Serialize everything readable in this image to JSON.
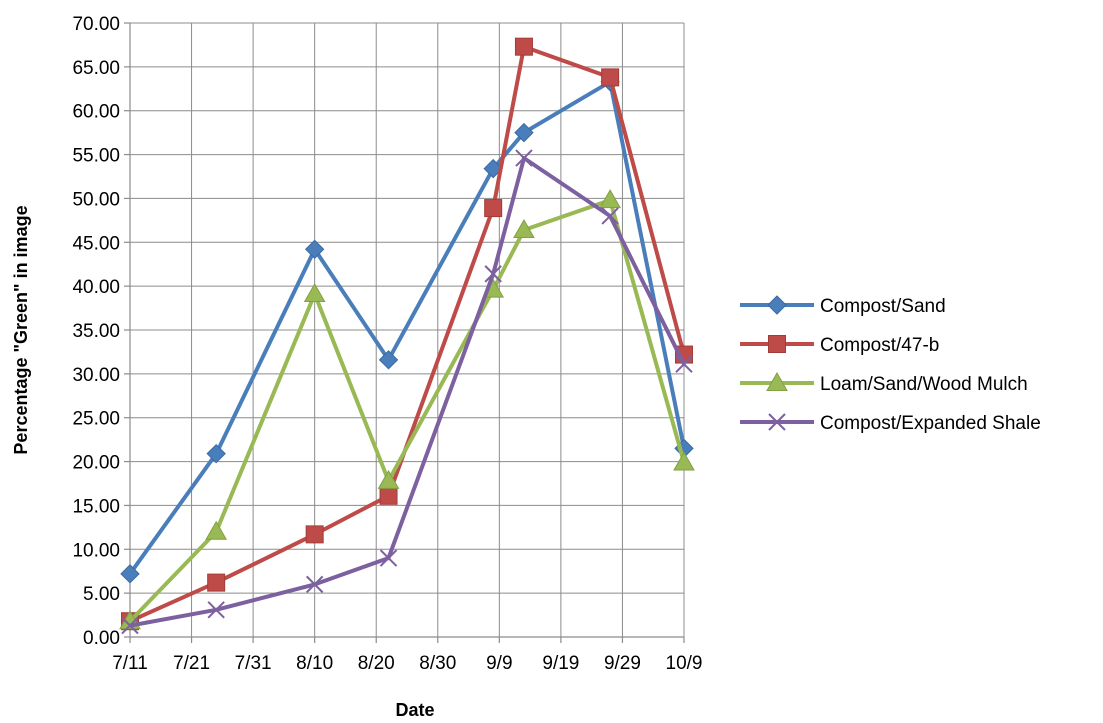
{
  "chart_data": {
    "type": "line",
    "title": "",
    "xlabel": "Date",
    "ylabel": "Percentage \"Green\" in image",
    "x_ticks": [
      "7/11",
      "7/21",
      "7/31",
      "8/10",
      "8/20",
      "8/30",
      "9/9",
      "9/19",
      "9/29",
      "10/9"
    ],
    "x_range": [
      "7/11",
      "10/9"
    ],
    "ylim": [
      0,
      70
    ],
    "y_ticks": [
      "0.00",
      "5.00",
      "10.00",
      "15.00",
      "20.00",
      "25.00",
      "30.00",
      "35.00",
      "40.00",
      "45.00",
      "50.00",
      "55.00",
      "60.00",
      "65.00",
      "70.00"
    ],
    "grid": "both",
    "legend_position": "right",
    "series": [
      {
        "name": "Compost/Sand",
        "color": "#4a7ebb",
        "marker": "diamond",
        "x": [
          "7/11",
          "7/25",
          "8/10",
          "8/22",
          "9/8",
          "9/13",
          "9/27",
          "10/9"
        ],
        "y": [
          7.2,
          20.9,
          44.2,
          31.6,
          53.4,
          57.5,
          63.3,
          21.5
        ]
      },
      {
        "name": "Compost/47-b",
        "color": "#be4b48",
        "marker": "square",
        "x": [
          "7/11",
          "7/25",
          "8/10",
          "8/22",
          "9/8",
          "9/13",
          "9/27",
          "10/9"
        ],
        "y": [
          1.8,
          6.2,
          11.7,
          16.1,
          48.9,
          67.3,
          63.8,
          32.2
        ]
      },
      {
        "name": "Loam/Sand/Wood Mulch",
        "color": "#98b954",
        "marker": "triangle",
        "x": [
          "7/11",
          "7/25",
          "8/10",
          "8/22",
          "9/8",
          "9/13",
          "9/27",
          "10/9"
        ],
        "y": [
          1.8,
          12.0,
          39.1,
          17.8,
          39.6,
          46.4,
          49.8,
          19.9
        ]
      },
      {
        "name": "Compost/Expanded Shale",
        "color": "#7d60a0",
        "marker": "x",
        "x": [
          "7/11",
          "7/25",
          "8/10",
          "8/22",
          "9/8",
          "9/13",
          "9/27",
          "10/9"
        ],
        "y": [
          1.3,
          3.1,
          6.0,
          9.0,
          41.4,
          54.6,
          48.0,
          31.1
        ]
      }
    ]
  }
}
